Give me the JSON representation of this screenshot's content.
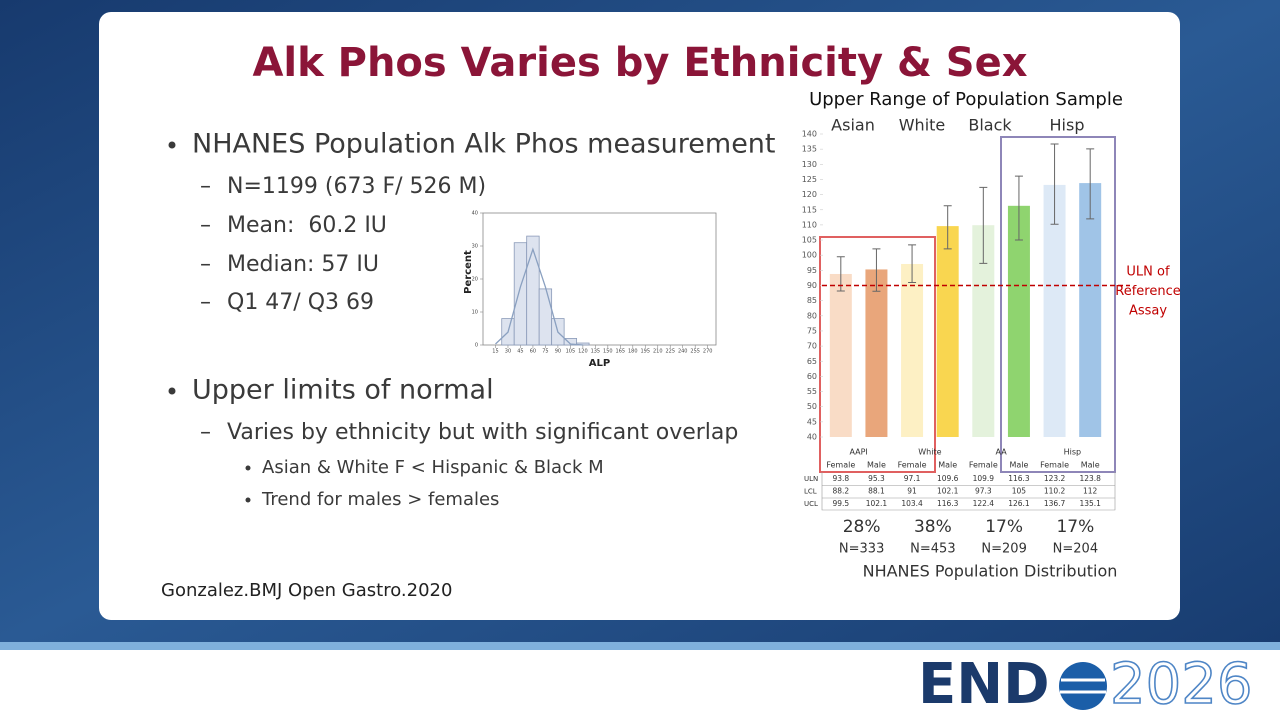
{
  "slide": {
    "title": "Alk Phos Varies by Ethnicity & Sex",
    "bullets": [
      {
        "text": "NHANES Population Alk Phos measurement",
        "sub": [
          {
            "text": "N=1199 (673 F/ 526 M)"
          },
          {
            "text": "Mean:  60.2 IU"
          },
          {
            "text": "Median: 57 IU"
          },
          {
            "text": "Q1 47/ Q3 69"
          }
        ]
      },
      {
        "text": "Upper limits of normal",
        "sub": [
          {
            "text": "Varies by ethnicity but with significant overlap",
            "sub": [
              {
                "text": "Asian & White F < Hispanic & Black M"
              },
              {
                "text": "Trend for males > females"
              }
            ]
          }
        ]
      }
    ],
    "citation": "Gonzalez.BMJ Open Gastro.2020"
  },
  "logo": {
    "left": "END",
    "right": "2026"
  },
  "chart_data": [
    {
      "type": "histogram",
      "ylabel": "Percent",
      "xlabel": "ALP",
      "bins": [
        22.5,
        37.5,
        52.5,
        67.5,
        82.5,
        97.5,
        112.5,
        127.5
      ],
      "values": [
        8,
        31,
        33,
        17,
        8,
        2,
        0.6
      ],
      "color": "#dde3ef",
      "xlim": [
        0,
        280
      ],
      "ylim": [
        0,
        40
      ],
      "xticks": [
        15,
        30,
        45,
        60,
        75,
        90,
        105,
        120,
        135,
        150,
        165,
        180,
        195,
        210,
        225,
        240,
        255,
        270
      ],
      "yticks": [
        0,
        10,
        20,
        30,
        40
      ],
      "curve": {
        "x": [
          15,
          30,
          45,
          60,
          75,
          90,
          105,
          120
        ],
        "y": [
          0.3,
          3.9,
          17.6,
          29,
          17.6,
          3.9,
          0.3,
          0
        ]
      }
    },
    {
      "type": "bar",
      "title": "Upper Range of Population Sample",
      "top_labels": [
        "Asian",
        "White",
        "Black",
        "Hisp"
      ],
      "groups": [
        "AAPI",
        "White",
        "AA",
        "Hisp"
      ],
      "categories": [
        "Female",
        "Male",
        "Female",
        "Male",
        "Female",
        "Male",
        "Female",
        "Male"
      ],
      "colors": [
        "#f9dcc6",
        "#e9a67b",
        "#fdf0c4",
        "#f9d650",
        "#e4f2dc",
        "#8fd46f",
        "#dde9f6",
        "#a0c4e7"
      ],
      "series": [
        {
          "name": "ULN",
          "values": [
            93.8,
            95.3,
            97.1,
            109.6,
            109.9,
            116.3,
            123.2,
            123.8
          ]
        },
        {
          "name": "LCL",
          "values": [
            88.2,
            88.1,
            91,
            102.1,
            97.3,
            105,
            110.2,
            112
          ]
        },
        {
          "name": "UCL",
          "values": [
            99.5,
            102.1,
            103.4,
            116.3,
            122.4,
            126.1,
            136.7,
            135.1
          ]
        }
      ],
      "ylim": [
        40,
        140
      ],
      "yticks": [
        40,
        45,
        50,
        55,
        60,
        65,
        70,
        75,
        80,
        85,
        90,
        95,
        100,
        105,
        110,
        115,
        120,
        125,
        130,
        135,
        140
      ],
      "reference": {
        "value": 90,
        "label": [
          "ULN of",
          "Reference",
          "Assay"
        ],
        "color": "#c00000"
      },
      "distribution": [
        {
          "percent": "28%",
          "n": "N=333"
        },
        {
          "percent": "38%",
          "n": "N=453"
        },
        {
          "percent": "17%",
          "n": "N=209"
        },
        {
          "percent": "17%",
          "n": "N=204"
        }
      ],
      "footer": "NHANES Population Distribution"
    }
  ]
}
